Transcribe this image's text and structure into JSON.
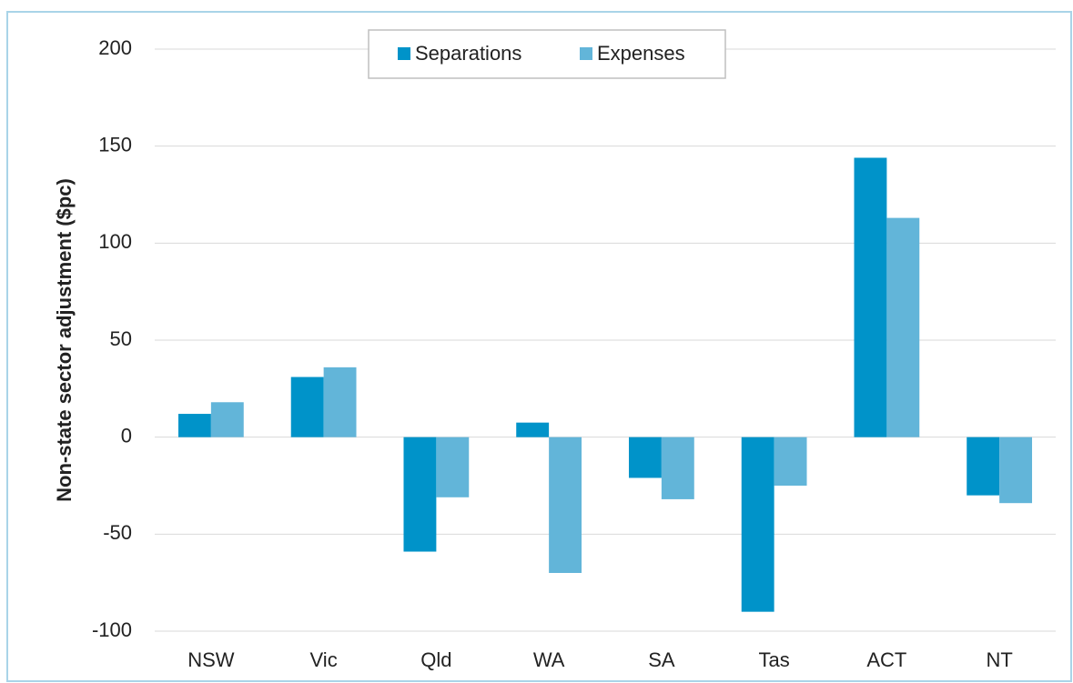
{
  "chart_data": {
    "type": "bar",
    "ylabel": "Non-state sector adjustment ($pc)",
    "categories": [
      "NSW",
      "Vic",
      "Qld",
      "WA",
      "SA",
      "Tas",
      "ACT",
      "NT"
    ],
    "series": [
      {
        "name": "Separations",
        "color": "#0093c9",
        "values": [
          12,
          31,
          -59,
          7.5,
          -21,
          -90,
          144,
          -30
        ]
      },
      {
        "name": "Expenses",
        "color": "#62b5d9",
        "values": [
          18,
          36,
          -31,
          -70,
          -32,
          -25,
          113,
          -34
        ]
      }
    ],
    "ylim": [
      -100,
      200
    ],
    "yticks": [
      -100,
      -50,
      0,
      50,
      100,
      150,
      200
    ],
    "grid": true,
    "legend": "top"
  }
}
